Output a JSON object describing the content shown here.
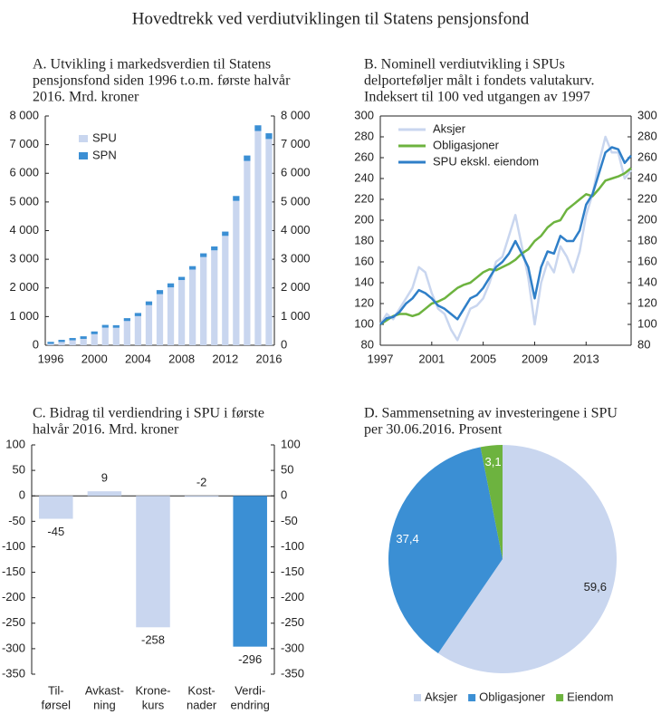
{
  "title": "Hovedtrekk ved verdiutviklingen til Statens pensjonsfond",
  "chart_data": [
    {
      "type": "bar",
      "stacked": true,
      "title": [
        "A. Utvikling i markedsverdien til Statens",
        "pensjonsfond siden 1996 t.o.m. første halvår",
        "2016. Mrd. kroner"
      ],
      "categories": [
        "1996",
        null,
        null,
        null,
        "2000",
        null,
        null,
        null,
        "2004",
        null,
        null,
        null,
        "2008",
        null,
        null,
        null,
        "2012",
        null,
        null,
        null,
        "2016"
      ],
      "series": [
        {
          "name": "SPU",
          "color": "#c9d6ef",
          "values": [
            48,
            113,
            172,
            222,
            386,
            614,
            609,
            845,
            1016,
            1399,
            1784,
            2019,
            2275,
            2640,
            3077,
            3312,
            3816,
            5038,
            6431,
            7475,
            7197
          ]
        },
        {
          "name": "SPN",
          "color": "#3b8fd4",
          "values": [
            70,
            75,
            80,
            90,
            95,
            95,
            90,
            100,
            110,
            130,
            140,
            140,
            110,
            120,
            130,
            135,
            150,
            170,
            190,
            200,
            200
          ]
        }
      ],
      "ylim": [
        0,
        8000
      ],
      "yticks": [
        0,
        {
          "value": 1000,
          "label": "1 000"
        },
        {
          "value": 2000,
          "label": "2 000"
        },
        {
          "value": 3000,
          "label": "3 000"
        },
        {
          "value": 4000,
          "label": "4 000"
        },
        {
          "value": 5000,
          "label": "5 000"
        },
        {
          "value": 6000,
          "label": "6 000"
        },
        {
          "value": 7000,
          "label": "7 000"
        },
        {
          "value": 8000,
          "label": "8 000"
        }
      ],
      "y2lim": [
        0,
        8000
      ],
      "y2ticks": [
        0,
        {
          "value": 1000,
          "label": "1 000"
        },
        {
          "value": 2000,
          "label": "2 000"
        },
        {
          "value": 3000,
          "label": "3 000"
        },
        {
          "value": 4000,
          "label": "4 000"
        },
        {
          "value": 5000,
          "label": "5 000"
        },
        {
          "value": 6000,
          "label": "6 000"
        },
        {
          "value": 7000,
          "label": "7 000"
        },
        {
          "value": 8000,
          "label": "8 000"
        }
      ],
      "legend": "upper left"
    },
    {
      "type": "line",
      "title": [
        "B. Nominell verdiutvikling i SPUs",
        "delporteføljer målt i fondets valutakurv.",
        "Indeksert til 100 ved utgangen av 1997"
      ],
      "x": [
        1997,
        1997.5,
        1998,
        1998.5,
        1999,
        1999.5,
        2000,
        2000.5,
        2001,
        2001.5,
        2002,
        2002.5,
        2003,
        2003.5,
        2004,
        2004.5,
        2005,
        2005.5,
        2006,
        2006.5,
        2007,
        2007.5,
        2008,
        2008.5,
        2009,
        2009.5,
        2010,
        2010.5,
        2011,
        2011.5,
        2012,
        2012.5,
        2013,
        2013.5,
        2014,
        2014.5,
        2015,
        2015.5,
        2016,
        2016.5
      ],
      "series": [
        {
          "name": "Aksjer",
          "color": "#c9d6ef",
          "values": [
            100,
            110,
            105,
            115,
            125,
            135,
            155,
            150,
            130,
            115,
            110,
            95,
            85,
            100,
            115,
            118,
            125,
            140,
            160,
            165,
            185,
            205,
            175,
            145,
            100,
            140,
            160,
            150,
            175,
            165,
            150,
            170,
            205,
            225,
            255,
            280,
            265,
            265,
            240,
            248
          ]
        },
        {
          "name": "Obligasjoner",
          "color": "#6db33f",
          "values": [
            100,
            104,
            108,
            110,
            110,
            108,
            110,
            115,
            120,
            122,
            125,
            130,
            135,
            138,
            140,
            145,
            150,
            153,
            152,
            155,
            158,
            162,
            168,
            172,
            180,
            185,
            193,
            198,
            200,
            210,
            215,
            220,
            225,
            223,
            230,
            238,
            240,
            242,
            245,
            250
          ]
        },
        {
          "name": "SPU ekskl. eiendom",
          "color": "#2f7fc8",
          "values": [
            100,
            106,
            107,
            112,
            120,
            125,
            133,
            130,
            125,
            118,
            115,
            110,
            105,
            115,
            125,
            128,
            135,
            145,
            155,
            160,
            168,
            180,
            168,
            155,
            125,
            155,
            170,
            168,
            185,
            180,
            180,
            190,
            215,
            225,
            245,
            265,
            270,
            268,
            255,
            262
          ]
        }
      ],
      "xlim": [
        1997,
        2016.5
      ],
      "xticks": [
        1997,
        2001,
        2005,
        2009,
        2013
      ],
      "ylim": [
        80,
        300
      ],
      "yticks": [
        80,
        100,
        120,
        140,
        160,
        180,
        200,
        220,
        240,
        260,
        280,
        300
      ],
      "y2lim": [
        80,
        300
      ],
      "y2ticks": [
        80,
        100,
        120,
        140,
        160,
        180,
        200,
        220,
        240,
        260,
        280,
        300
      ],
      "legend": "upper left"
    },
    {
      "type": "bar",
      "title": [
        "C. Bidrag til verdiendring i SPU i første",
        "halvår 2016. Mrd. kroner"
      ],
      "categories": [
        [
          "Til-",
          "førsel"
        ],
        [
          "Avkast-",
          "ning"
        ],
        [
          "Krone-",
          "kurs"
        ],
        [
          "Kost-",
          "nader"
        ],
        [
          "Verdi-",
          "endring"
        ]
      ],
      "values": [
        -45,
        9,
        -258,
        -2,
        -296
      ],
      "colors": [
        "#c9d6ef",
        "#c9d6ef",
        "#c9d6ef",
        "#c9d6ef",
        "#3b8fd4"
      ],
      "ylim": [
        -350,
        100
      ],
      "yticks": [
        -350,
        -300,
        -250,
        -200,
        -150,
        -100,
        -50,
        0,
        50,
        100
      ],
      "y2lim": [
        -350,
        100
      ],
      "y2ticks": [
        -350,
        -300,
        -250,
        -200,
        -150,
        -100,
        -50,
        0,
        50,
        100
      ]
    },
    {
      "type": "pie",
      "title": [
        "D. Sammensetning av investeringene i SPU",
        "per 30.06.2016. Prosent"
      ],
      "categories": [
        "Aksjer",
        "Obligasjoner",
        "Eiendom"
      ],
      "values": [
        59.6,
        37.4,
        3.1
      ],
      "value_labels": [
        "59,6",
        "37,4",
        "3,1"
      ],
      "colors": [
        "#c9d6ef",
        "#3b8fd4",
        "#6db33f"
      ],
      "legend": "bottom"
    }
  ]
}
